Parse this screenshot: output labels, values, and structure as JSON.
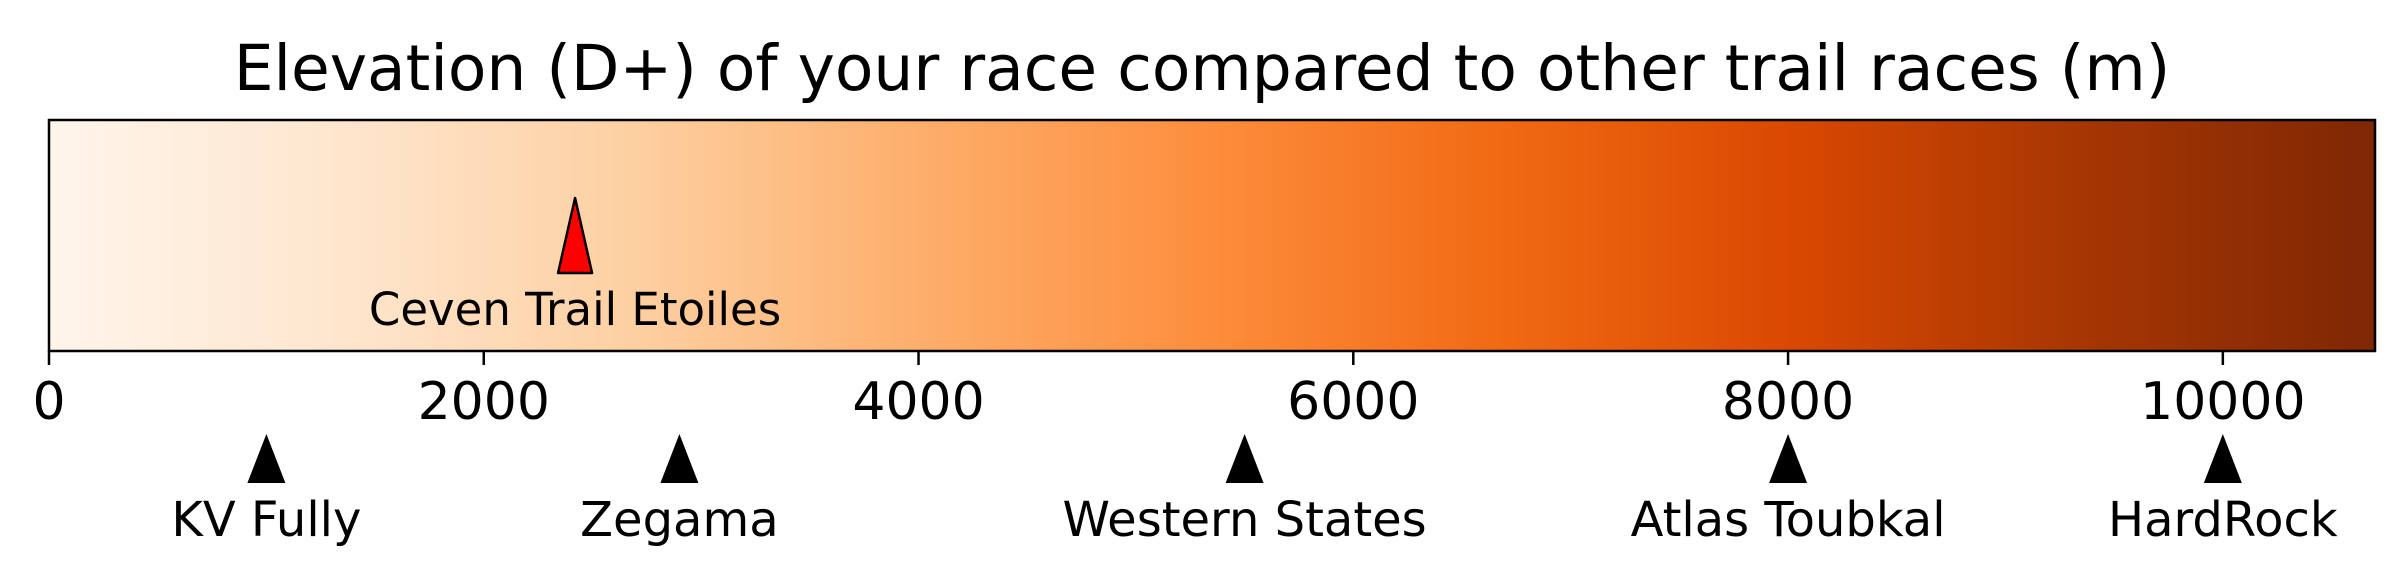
{
  "chart_data": {
    "type": "colorbar-scale",
    "title": "Elevation (D+) of your race compared to other trail races (m)",
    "xlim": [
      0,
      10700
    ],
    "ticks": [
      0,
      2000,
      4000,
      6000,
      8000,
      10000
    ],
    "tick_labels": [
      "0",
      "2000",
      "4000",
      "6000",
      "8000",
      "10000"
    ],
    "colormap": [
      "#fff5eb",
      "#fee6ce",
      "#fdd0a2",
      "#fdae6b",
      "#fd8d3c",
      "#f16913",
      "#d94801",
      "#a63603",
      "#7f2704"
    ],
    "your_race": {
      "name": "Ceven Trail Etoiles",
      "value": 2420,
      "color": "#ff0000"
    },
    "reference_races": [
      {
        "name": "KV Fully",
        "value": 1000
      },
      {
        "name": "Zegama",
        "value": 2900
      },
      {
        "name": "Western States",
        "value": 5500
      },
      {
        "name": "Atlas Toubkal",
        "value": 8000
      },
      {
        "name": "HardRock",
        "value": 10000
      }
    ]
  }
}
